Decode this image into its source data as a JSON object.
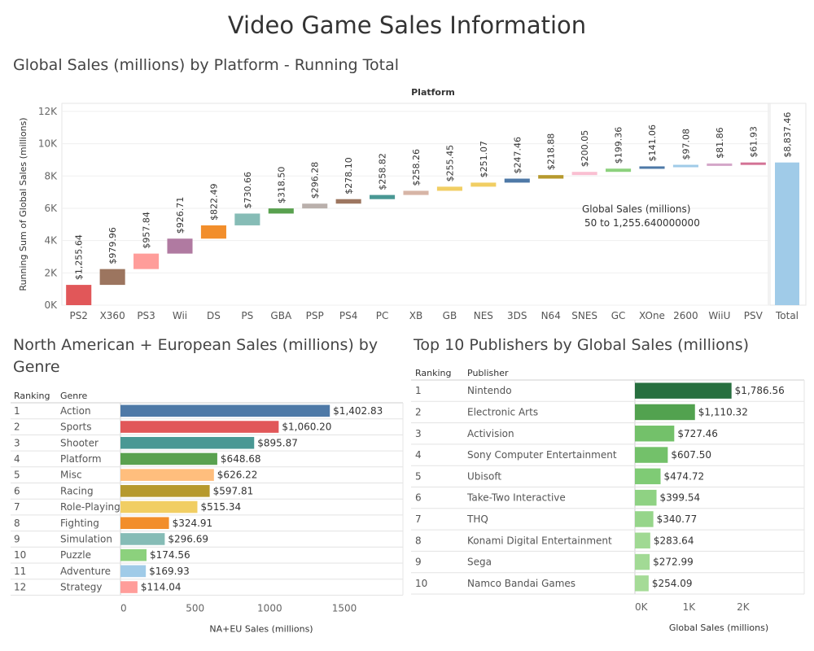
{
  "page": {
    "title": "Video Game Sales Information"
  },
  "chart_data": [
    {
      "type": "bar",
      "title": "Global Sales (millions) by Platform - Running Total",
      "column_header": "Platform",
      "ylabel": "Running Sum of Global Sales (millions)",
      "ylim": [
        0,
        12500
      ],
      "yticks": [
        0,
        2000,
        4000,
        6000,
        8000,
        10000,
        12000
      ],
      "ytick_labels": [
        "0K",
        "2K",
        "4K",
        "6K",
        "8K",
        "10K",
        "12K"
      ],
      "grid": true,
      "categories": [
        "PS2",
        "X360",
        "PS3",
        "Wii",
        "DS",
        "PS",
        "GBA",
        "PSP",
        "PS4",
        "PC",
        "XB",
        "GB",
        "NES",
        "3DS",
        "N64",
        "SNES",
        "GC",
        "XOne",
        "2600",
        "WiiU",
        "PSV"
      ],
      "values": [
        1255.64,
        979.96,
        957.84,
        926.71,
        822.49,
        730.66,
        318.5,
        296.28,
        278.1,
        258.82,
        258.26,
        255.45,
        251.07,
        247.46,
        218.88,
        200.05,
        199.36,
        141.06,
        97.08,
        81.86,
        61.93
      ],
      "value_labels": [
        "$1,255.64",
        "$979.96",
        "$957.84",
        "$926.71",
        "$822.49",
        "$730.66",
        "$318.50",
        "$296.28",
        "$278.10",
        "$258.82",
        "$258.26",
        "$255.45",
        "$251.07",
        "$247.46",
        "$218.88",
        "$200.05",
        "$199.36",
        "$141.06",
        "$97.08",
        "$81.86",
        "$61.93"
      ],
      "colors": [
        "#e15759",
        "#9c755f",
        "#ff9d9a",
        "#b07aa1",
        "#f28e2b",
        "#86bcb6",
        "#59a14f",
        "#bab0ac",
        "#9d7660",
        "#499894",
        "#d7b5a6",
        "#f1ce63",
        "#f1ce63",
        "#4e79a7",
        "#b6992d",
        "#fabfd2",
        "#8cd17d",
        "#4e79a7",
        "#a0cbe8",
        "#d4a6c8",
        "#d37295"
      ],
      "total": {
        "label": "Total",
        "value": 8837.46,
        "value_label": "$8,837.46",
        "color": "#a0cbe8"
      },
      "legend": {
        "title": "Global Sales (millions)",
        "range": "50 to 1,255.640000000",
        "position": "right"
      }
    },
    {
      "type": "bar",
      "title": "North American + European Sales (millions) by Genre",
      "ranking_header": "Ranking",
      "label_header": "Genre",
      "xlabel": "NA+EU Sales (millions)",
      "xlim": [
        0,
        1800
      ],
      "xticks": [
        0,
        500,
        1000,
        1500
      ],
      "xtick_labels": [
        "0",
        "500",
        "1000",
        "1500"
      ],
      "categories": [
        "Action",
        "Sports",
        "Shooter",
        "Platform",
        "Misc",
        "Racing",
        "Role-Playing",
        "Fighting",
        "Simulation",
        "Puzzle",
        "Adventure",
        "Strategy"
      ],
      "rankings": [
        "1",
        "2",
        "3",
        "4",
        "5",
        "6",
        "7",
        "8",
        "9",
        "10",
        "11",
        "12"
      ],
      "values": [
        1402.83,
        1060.2,
        895.87,
        648.68,
        626.22,
        597.81,
        515.34,
        324.91,
        296.69,
        174.56,
        169.93,
        114.04
      ],
      "value_labels": [
        "$1,402.83",
        "$1,060.20",
        "$895.87",
        "$648.68",
        "$626.22",
        "$597.81",
        "$515.34",
        "$324.91",
        "$296.69",
        "$174.56",
        "$169.93",
        "$114.04"
      ],
      "colors": [
        "#4e79a7",
        "#e15759",
        "#499894",
        "#59a14f",
        "#ffbe7d",
        "#b6992d",
        "#f1ce63",
        "#f28e2b",
        "#86bcb6",
        "#8cd17d",
        "#a0cbe8",
        "#ff9d9a"
      ]
    },
    {
      "type": "bar",
      "title": "Top 10 Publishers by Global Sales (millions)",
      "ranking_header": "Ranking",
      "label_header": "Publisher",
      "xlabel": "Global Sales (millions)",
      "xlim": [
        0,
        2800
      ],
      "xticks": [
        0,
        1000,
        2000
      ],
      "xtick_labels": [
        "0K",
        "1K",
        "2K"
      ],
      "categories": [
        "Nintendo",
        "Electronic Arts",
        "Activision",
        "Sony Computer Entertainment",
        "Ubisoft",
        "Take-Two Interactive",
        "THQ",
        "Konami Digital Entertainment",
        "Sega",
        "Namco Bandai Games"
      ],
      "rankings": [
        "1",
        "2",
        "3",
        "4",
        "5",
        "6",
        "7",
        "8",
        "9",
        "10"
      ],
      "values": [
        1786.56,
        1110.32,
        727.46,
        607.5,
        474.72,
        399.54,
        340.77,
        283.64,
        272.99,
        254.09
      ],
      "value_labels": [
        "$1,786.56",
        "$1,110.32",
        "$727.46",
        "$607.50",
        "$474.72",
        "$399.54",
        "$340.77",
        "$283.64",
        "$272.99",
        "$254.09"
      ],
      "colors": [
        "#276f3f",
        "#52a24f",
        "#73c16a",
        "#73c16a",
        "#7fcb75",
        "#8fd283",
        "#96d58a",
        "#a0d993",
        "#a2da95",
        "#a5db97"
      ]
    }
  ]
}
